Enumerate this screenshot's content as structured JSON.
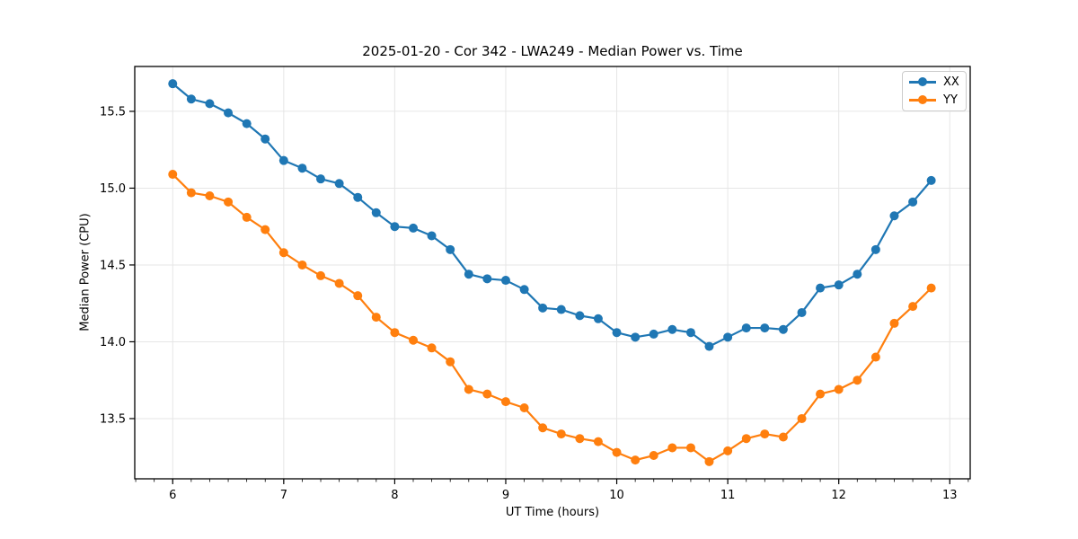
{
  "figure": {
    "title": "2025-01-20 - Cor 342 - LWA249 - Median Power vs. Time",
    "xlabel": "UT Time (hours)",
    "ylabel": "Median Power (CPU)"
  },
  "colors": {
    "series_xx": "#1f77b4",
    "series_yy": "#ff7f0e",
    "grid": "#e6e6e6",
    "spine": "#000000",
    "background": "#ffffff",
    "legend_border": "#cccccc"
  },
  "chart_data": {
    "type": "line",
    "title": "2025-01-20 - Cor 342 - LWA249 - Median Power vs. Time",
    "xlabel": "UT Time (hours)",
    "ylabel": "Median Power (CPU)",
    "grid": true,
    "legend_position": "upper right",
    "marker": "circle",
    "xlim": [
      5.658,
      13.184
    ],
    "ylim": [
      13.108,
      15.792
    ],
    "xticks": [
      {
        "v": 6,
        "label": "6"
      },
      {
        "v": 7,
        "label": "7"
      },
      {
        "v": 8,
        "label": "8"
      },
      {
        "v": 9,
        "label": "9"
      },
      {
        "v": 10,
        "label": "10"
      },
      {
        "v": 11,
        "label": "11"
      },
      {
        "v": 12,
        "label": "12"
      },
      {
        "v": 13,
        "label": "13"
      }
    ],
    "yticks": [
      {
        "v": 13.5,
        "label": "13.5"
      },
      {
        "v": 14.0,
        "label": "14.0"
      },
      {
        "v": 14.5,
        "label": "14.5"
      },
      {
        "v": 15.0,
        "label": "15.0"
      },
      {
        "v": 15.5,
        "label": "15.5"
      }
    ],
    "x_minor_step": 0.166667,
    "x": [
      6.0,
      6.167,
      6.333,
      6.5,
      6.667,
      6.833,
      7.0,
      7.167,
      7.333,
      7.5,
      7.667,
      7.833,
      8.0,
      8.167,
      8.333,
      8.5,
      8.667,
      8.833,
      9.0,
      9.167,
      9.333,
      9.5,
      9.667,
      9.833,
      10.0,
      10.167,
      10.333,
      10.5,
      10.667,
      10.833,
      11.0,
      11.167,
      11.333,
      11.5,
      11.667,
      11.833,
      12.0,
      12.167,
      12.333,
      12.5,
      12.667,
      12.833
    ],
    "series": [
      {
        "name": "XX",
        "color": "#1f77b4",
        "values": [
          15.68,
          15.58,
          15.55,
          15.49,
          15.42,
          15.32,
          15.18,
          15.13,
          15.06,
          15.03,
          14.94,
          14.84,
          14.75,
          14.74,
          14.69,
          14.6,
          14.44,
          14.41,
          14.4,
          14.34,
          14.22,
          14.21,
          14.17,
          14.15,
          14.06,
          14.03,
          14.05,
          14.08,
          14.06,
          13.97,
          14.03,
          14.09,
          14.09,
          14.08,
          14.19,
          14.35,
          14.37,
          14.44,
          14.6,
          14.82,
          14.91,
          15.05
        ]
      },
      {
        "name": "YY",
        "color": "#ff7f0e",
        "values": [
          15.09,
          14.97,
          14.95,
          14.91,
          14.81,
          14.73,
          14.58,
          14.5,
          14.43,
          14.38,
          14.3,
          14.16,
          14.06,
          14.01,
          13.96,
          13.87,
          13.69,
          13.66,
          13.61,
          13.57,
          13.44,
          13.4,
          13.37,
          13.35,
          13.28,
          13.23,
          13.26,
          13.31,
          13.31,
          13.22,
          13.29,
          13.37,
          13.4,
          13.38,
          13.5,
          13.66,
          13.69,
          13.75,
          13.9,
          14.12,
          14.23,
          14.35
        ]
      }
    ]
  }
}
